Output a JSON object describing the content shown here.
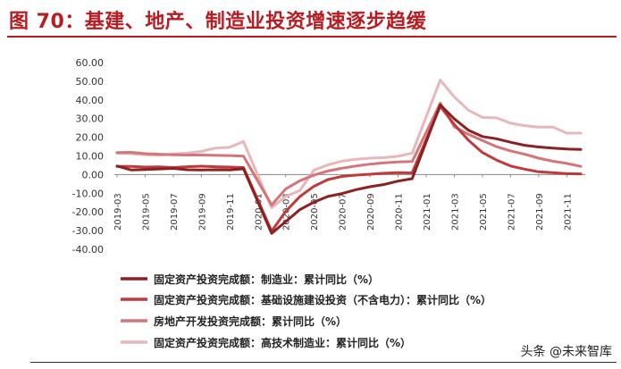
{
  "page_title": "图 70：基建、地产、制造业投资增速逐步趋缓",
  "watermark": "头条 @未来智库",
  "chart_data": {
    "type": "line",
    "title": "",
    "xlabel": "",
    "ylabel": "",
    "ylim": [
      -40,
      60
    ],
    "ytick_labels": [
      "60.00",
      "50.00",
      "40.00",
      "30.00",
      "20.00",
      "10.00",
      "0.00",
      "-10.00",
      "-20.00",
      "-30.00",
      "-40.00"
    ],
    "x": [
      "2019-03",
      "2019-04",
      "2019-05",
      "2019-06",
      "2019-07",
      "2019-08",
      "2019-09",
      "2019-10",
      "2019-11",
      "2019-12",
      "2020-02",
      "2020-03",
      "2020-04",
      "2020-05",
      "2020-06",
      "2020-07",
      "2020-08",
      "2020-09",
      "2020-10",
      "2020-11",
      "2020-12",
      "2021-02",
      "2021-03",
      "2021-04",
      "2021-05",
      "2021-06",
      "2021-07",
      "2021-08",
      "2021-09",
      "2021-10",
      "2021-11",
      "2021-12"
    ],
    "xtick_labels": [
      "2019-03",
      "2019-05",
      "2019-07",
      "2019-09",
      "2019-11",
      "2020-01",
      "2020-03",
      "2020-05",
      "2020-07",
      "2020-09",
      "2020-11",
      "2021-01",
      "2021-03",
      "2021-05",
      "2021-07",
      "2021-09",
      "2021-11"
    ],
    "grid": false,
    "legend_position": "bottom",
    "series": [
      {
        "name": "固定资产投资完成额：制造业：累计同比（%）",
        "color": "#8b2222",
        "values": [
          4.6,
          2.5,
          2.7,
          3.0,
          3.3,
          2.6,
          2.5,
          2.6,
          2.5,
          3.1,
          -31.5,
          -25.2,
          -18.8,
          -14.8,
          -11.7,
          -10.2,
          -8.1,
          -6.5,
          -5.3,
          -3.5,
          -2.2,
          37.3,
          29.8,
          23.8,
          20.4,
          19.2,
          17.3,
          15.7,
          14.8,
          14.2,
          13.7,
          13.5
        ]
      },
      {
        "name": "固定资产投资完成额：基础设施建设投资（不含电力）：累计同比（%）",
        "color": "#c0393b",
        "values": [
          4.4,
          4.4,
          4.0,
          4.1,
          3.8,
          4.2,
          4.5,
          4.2,
          4.0,
          3.8,
          -30.3,
          -19.7,
          -11.8,
          -6.3,
          -2.7,
          -1.0,
          -0.3,
          0.2,
          0.7,
          1.0,
          0.9,
          36.6,
          26.8,
          18.4,
          11.8,
          7.8,
          4.6,
          2.9,
          1.5,
          1.0,
          0.5,
          0.4
        ]
      },
      {
        "name": "房地产开发投资完成额：累计同比（%）",
        "color": "#d4757a",
        "values": [
          11.8,
          11.9,
          11.2,
          10.9,
          10.6,
          10.5,
          10.5,
          10.3,
          10.2,
          9.9,
          -16.3,
          -7.7,
          -3.3,
          -0.3,
          1.9,
          3.4,
          4.6,
          5.6,
          6.3,
          6.8,
          7.0,
          38.3,
          25.6,
          21.6,
          18.3,
          15.0,
          12.7,
          10.9,
          8.8,
          7.2,
          6.0,
          4.4
        ]
      },
      {
        "name": "固定资产投资完成额：高技术制造业：累计同比（%）",
        "color": "#e8b7b9",
        "values": [
          11.4,
          11.2,
          10.6,
          10.4,
          11.1,
          11.5,
          12.4,
          14.2,
          14.6,
          17.7,
          -17.7,
          -11.7,
          -8.6,
          2.3,
          5.2,
          7.2,
          8.2,
          8.8,
          9.1,
          9.8,
          11.5,
          50.6,
          41.6,
          34.5,
          30.6,
          30.4,
          27.5,
          26.2,
          25.4,
          25.5,
          22.2,
          22.2
        ]
      }
    ]
  }
}
